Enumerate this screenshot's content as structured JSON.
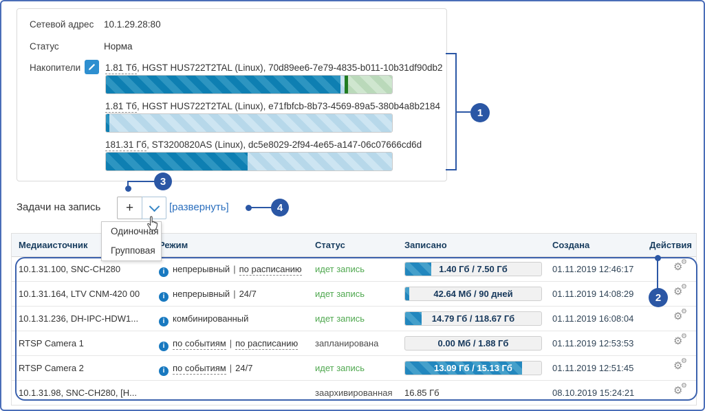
{
  "info": {
    "rows": [
      {
        "label": "Сетевой адрес",
        "value": "10.1.29.28:80"
      },
      {
        "label": "Статус",
        "value": "Норма"
      }
    ],
    "drives_label": "Накопители",
    "drives": [
      {
        "size": "1.81 Тб",
        "desc": ", HGST HUS722T2TAL (Linux), 70d89ee6-7e79-4835-b011-10b31df90db2",
        "segments": [
          {
            "type": "used",
            "pct": 82
          },
          {
            "type": "free",
            "pct": 1.5
          },
          {
            "type": "marker",
            "pct": 1.2
          },
          {
            "type": "reserved",
            "pct": 15.3
          }
        ]
      },
      {
        "size": "1.81 Тб",
        "desc": ", HGST HUS722T2TAL (Linux), e71fbfcb-8b73-4569-89a5-380b4a8b2184",
        "segments": [
          {
            "type": "used",
            "pct": 1.2
          },
          {
            "type": "free",
            "pct": 98.8
          }
        ]
      },
      {
        "size": "181.31 Гб",
        "desc": ", ST3200820AS (Linux), dc5e8029-2f94-4e65-a147-06c07666cd6d",
        "segments": [
          {
            "type": "used",
            "pct": 49.5
          },
          {
            "type": "free",
            "pct": 50.5
          }
        ]
      }
    ]
  },
  "tasks": {
    "title": "Задачи на запись",
    "add_label": "+",
    "expand_label": "[развернуть]",
    "menu_items": [
      "Одиночная",
      "Групповая"
    ]
  },
  "table": {
    "columns": [
      "Медиаисточник",
      "Режим",
      "Статус",
      "Записано",
      "Создана",
      "Действия"
    ],
    "mode_separator": "|",
    "rows": [
      {
        "media": "10.1.31.100, SNC-CH280",
        "mode": {
          "parts": [
            {
              "text": "непрерывный",
              "dashed": false
            },
            {
              "text": "по расписанию",
              "dashed": true
            }
          ]
        },
        "status": {
          "text": "идет запись",
          "kind": "active"
        },
        "recorded": {
          "text": "1.40 Гб / 7.50 Гб",
          "pct": 19
        },
        "created": "01.11.2019 12:46:17"
      },
      {
        "media": "10.1.31.164, LTV CNM-420 00",
        "mode": {
          "parts": [
            {
              "text": "непрерывный",
              "dashed": false
            },
            {
              "text": "24/7",
              "dashed": false
            }
          ]
        },
        "status": {
          "text": "идет запись",
          "kind": "active"
        },
        "recorded": {
          "text": "42.64 Мб / 90 дней",
          "pct": 3
        },
        "created": "01.11.2019 14:08:29"
      },
      {
        "media": "10.1.31.236, DH-IPC-HDW1...",
        "mode": {
          "parts": [
            {
              "text": "комбинированный",
              "dashed": false
            }
          ]
        },
        "status": {
          "text": "идет запись",
          "kind": "active"
        },
        "recorded": {
          "text": "14.79 Гб / 118.67 Гб",
          "pct": 12
        },
        "created": "01.11.2019 16:08:04"
      },
      {
        "media": "RTSP Camera 1",
        "mode": {
          "parts": [
            {
              "text": "по событиям",
              "dashed": true
            },
            {
              "text": "по расписанию",
              "dashed": true
            }
          ]
        },
        "status": {
          "text": "запланирована",
          "kind": "plain"
        },
        "recorded": {
          "text": "0.00 Мб / 1.88 Гб",
          "pct": 0
        },
        "created": "01.11.2019 12:53:53"
      },
      {
        "media": "RTSP Camera 2",
        "mode": {
          "parts": [
            {
              "text": "по событиям",
              "dashed": true
            },
            {
              "text": "24/7",
              "dashed": false
            }
          ]
        },
        "status": {
          "text": "идет запись",
          "kind": "active"
        },
        "recorded": {
          "text": "13.09 Гб / 15.13 Гб",
          "pct": 86,
          "white_text": true
        },
        "created": "01.11.2019 12:51:45"
      },
      {
        "media": "10.1.31.98, SNC-CH280, [Н...",
        "mode": {
          "parts": []
        },
        "status": {
          "text": "заархивированная",
          "kind": "plain"
        },
        "recorded": {
          "text": "16.85 Гб",
          "plain": true
        },
        "created": "08.10.2019 15:24:21"
      }
    ]
  },
  "callouts": [
    "1",
    "2",
    "3",
    "4"
  ],
  "icons": {
    "info_glyph": "i",
    "gear_glyph": "⚙",
    "edit_icon": "pencil",
    "dropdown_icon": "chevron-down",
    "cursor_icon": "hand-pointer"
  },
  "colors": {
    "callout_blue": "#2b57a5",
    "outline_blue": "#3b61ad",
    "bar_used_blue": "#0e7fb2",
    "bar_free_blue": "#b7d8ea",
    "bar_marker_green": "#217c21",
    "bar_reserved_green": "#bad9ba",
    "status_green": "#4fa84f",
    "link_blue": "#2b6fbe",
    "pill_fill_blue": "#2287be"
  }
}
